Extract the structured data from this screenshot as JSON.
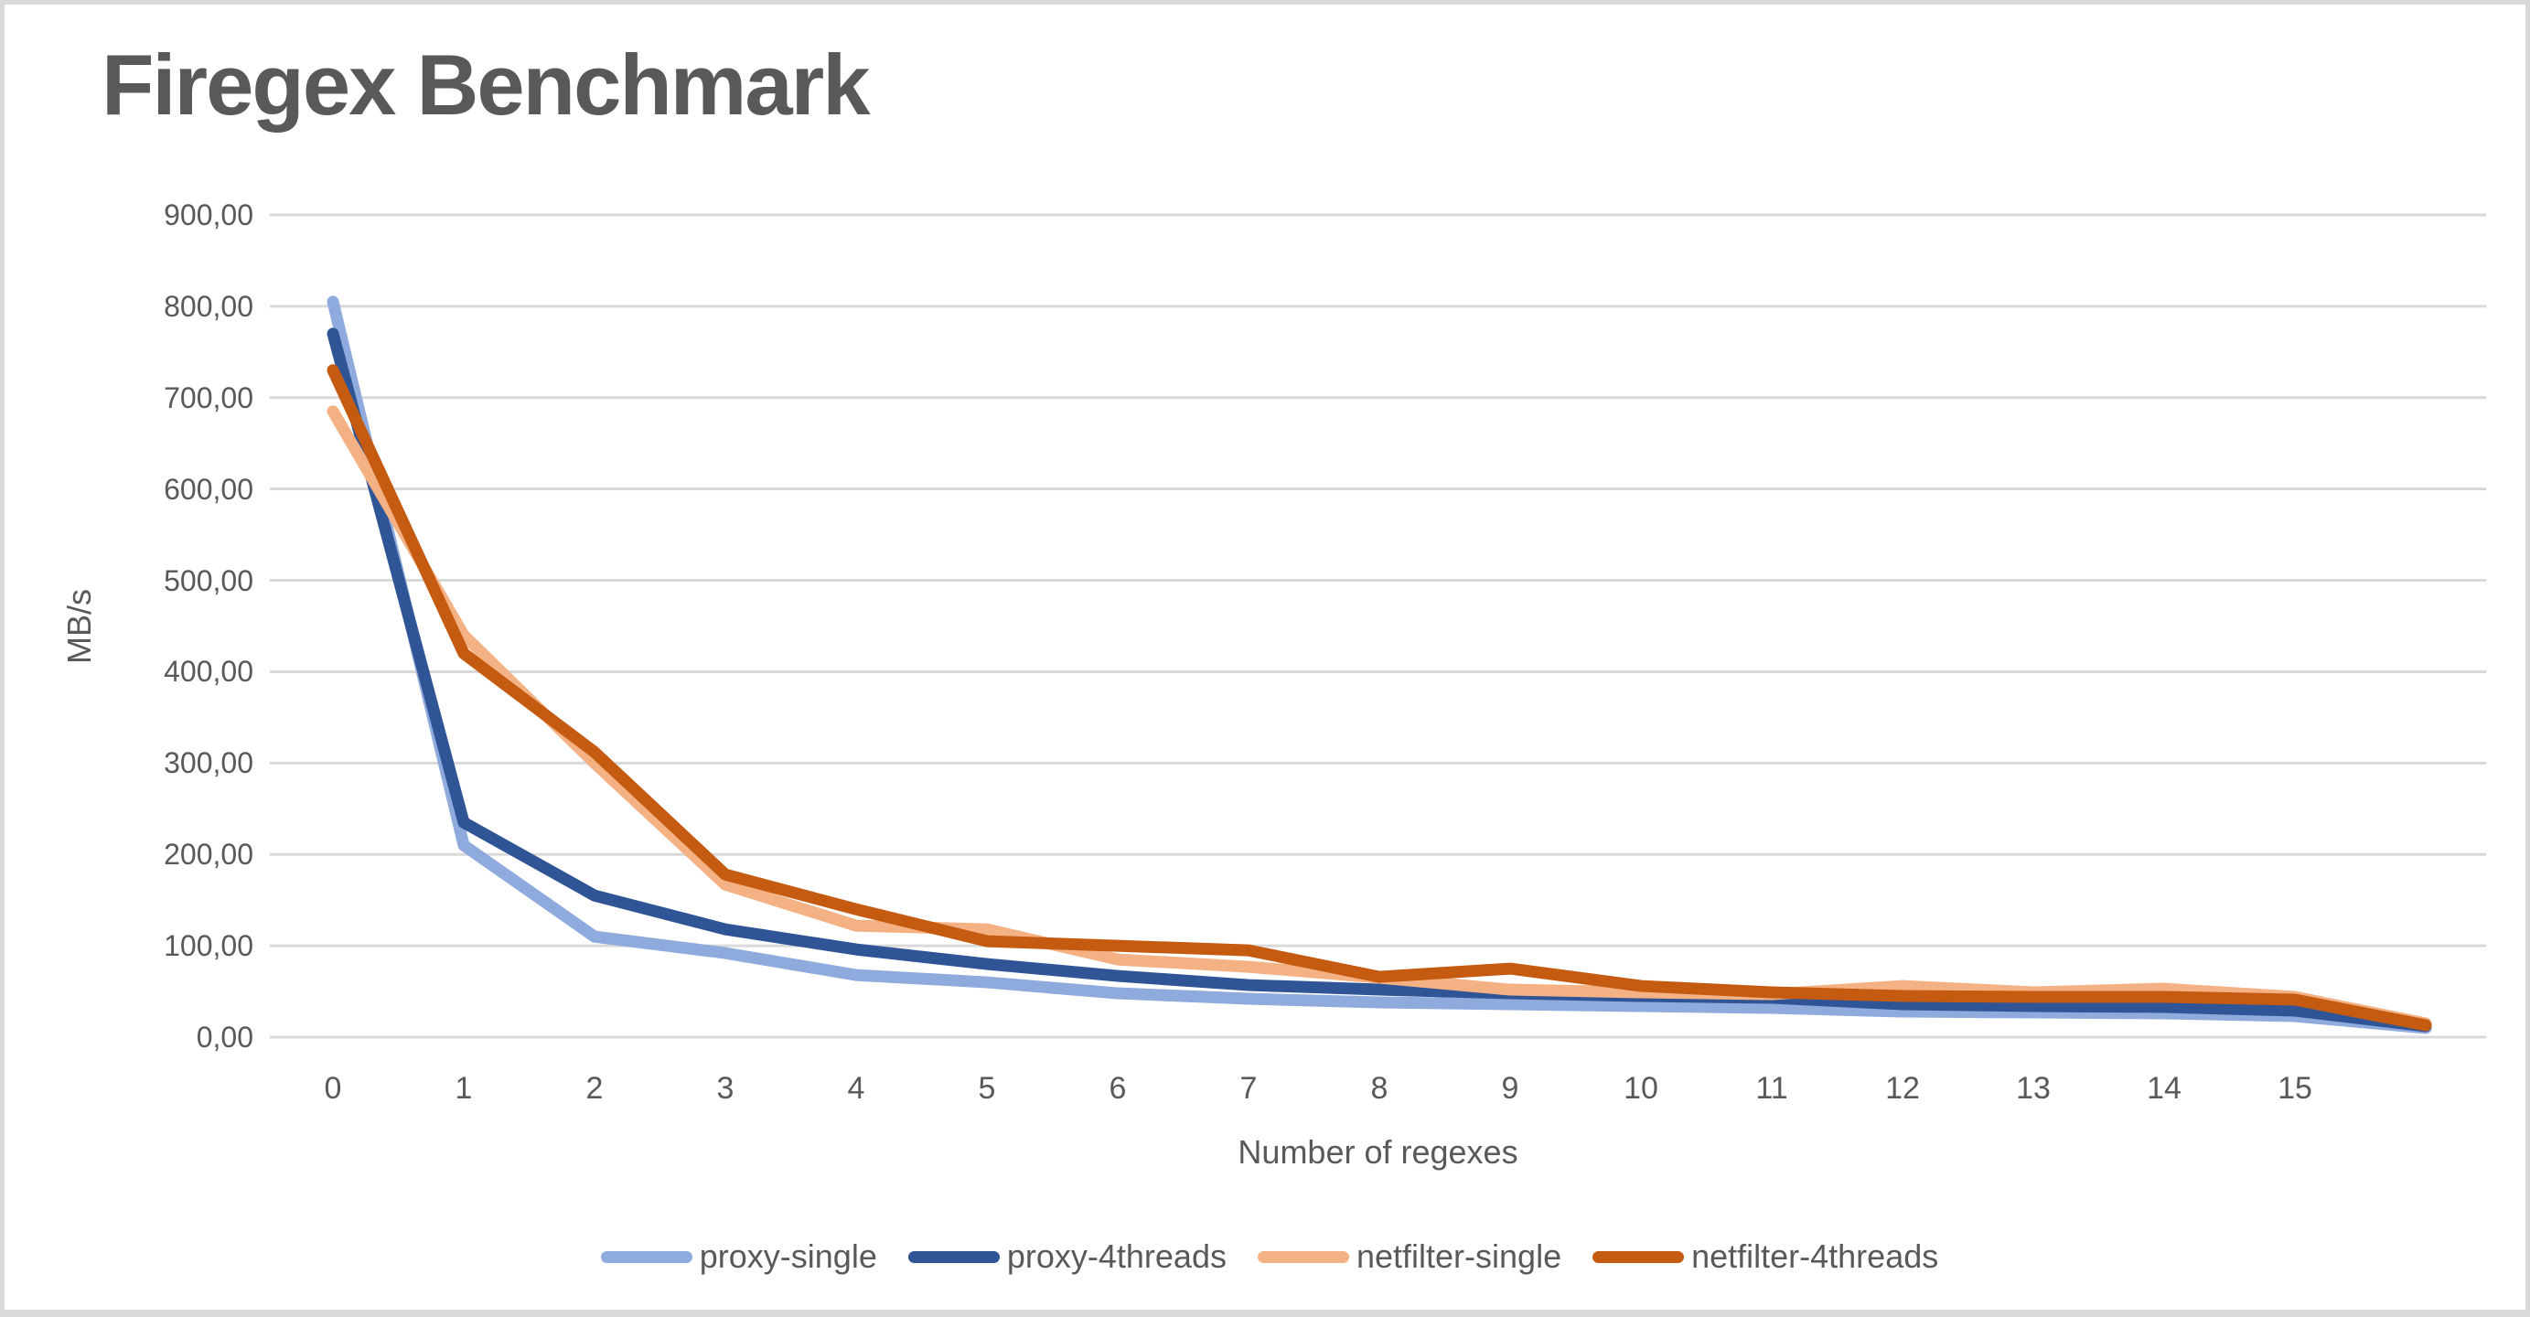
{
  "colors": {
    "text": "#595959",
    "gridline": "#d9d9d9",
    "border": "#d9d9d9",
    "background": "#ffffff"
  },
  "chart_data": {
    "type": "line",
    "title": "Firegex Benchmark",
    "xlabel": "Number of regexes",
    "ylabel": "MB/s",
    "ylim": [
      0,
      900
    ],
    "grid": true,
    "legend_position": "bottom",
    "y_tick_labels": [
      "900,00",
      "800,00",
      "700,00",
      "600,00",
      "500,00",
      "400,00",
      "300,00",
      "200,00",
      "100,00",
      "0,00"
    ],
    "y_tick_values": [
      900,
      800,
      700,
      600,
      500,
      400,
      300,
      200,
      100,
      0
    ],
    "x_tick_labels": [
      "0",
      "1",
      "2",
      "3",
      "4",
      "5",
      "6",
      "7",
      "8",
      "9",
      "10",
      "11",
      "12",
      "13",
      "14",
      "15"
    ],
    "x": [
      0,
      1,
      2,
      3,
      4,
      5,
      6,
      7,
      8,
      9,
      10,
      11,
      12,
      13,
      14,
      15,
      16
    ],
    "series": [
      {
        "name": "proxy-single",
        "color": "#8FAADC",
        "values": [
          805,
          210,
          110,
          92,
          68,
          60,
          48,
          42,
          38,
          36,
          34,
          32,
          28,
          27,
          26,
          23,
          10
        ]
      },
      {
        "name": "proxy-4threads",
        "color": "#2F5597",
        "values": [
          770,
          235,
          155,
          118,
          96,
          80,
          67,
          57,
          52,
          48,
          45,
          43,
          36,
          34,
          33,
          29,
          12
        ]
      },
      {
        "name": "netfilter-single",
        "color": "#F4B183",
        "values": [
          685,
          440,
          300,
          167,
          122,
          118,
          85,
          77,
          65,
          52,
          49,
          47,
          56,
          49,
          53,
          44,
          15
        ]
      },
      {
        "name": "netfilter-4threads",
        "color": "#C55A11",
        "values": [
          730,
          420,
          312,
          178,
          140,
          105,
          100,
          95,
          66,
          75,
          56,
          49,
          45,
          44,
          44,
          41,
          13
        ]
      }
    ]
  }
}
